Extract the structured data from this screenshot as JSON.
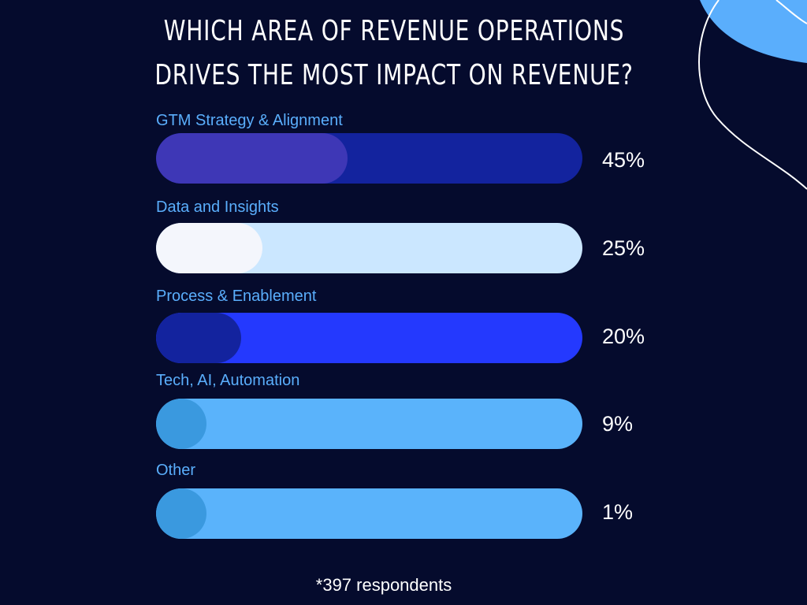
{
  "colors": {
    "background": "#050b2d",
    "label": "#5aaefc",
    "value_text": "#ffffff",
    "decoration_blob": "#5aaefc",
    "decoration_line": "#ffffff"
  },
  "title": {
    "line1": "WHICH AREA OF REVENUE OPERATIONS",
    "line2": "DRIVES THE MOST IMPACT ON REVENUE?"
  },
  "chart_data": {
    "type": "bar",
    "orientation": "horizontal",
    "title": "WHICH AREA OF REVENUE OPERATIONS DRIVES THE MOST IMPACT ON REVENUE?",
    "xlabel": "",
    "ylabel": "",
    "xlim": [
      0,
      100
    ],
    "unit": "%",
    "categories": [
      "GTM Strategy & Alignment",
      "Data and Insights",
      "Process & Enablement",
      "Tech, AI, Automation",
      "Other"
    ],
    "values": [
      45,
      25,
      20,
      9,
      1
    ],
    "value_labels": [
      "45%",
      "25%",
      "20%",
      "9%",
      "1%"
    ],
    "track_colors": [
      "#13239e",
      "#cbe7ff",
      "#2439fe",
      "#5ab3fb",
      "#5ab3fb"
    ],
    "fill_colors": [
      "#3e37b6",
      "#f4f6fc",
      "#13239e",
      "#3a99df",
      "#3a99df"
    ],
    "note": "*397 respondents"
  }
}
